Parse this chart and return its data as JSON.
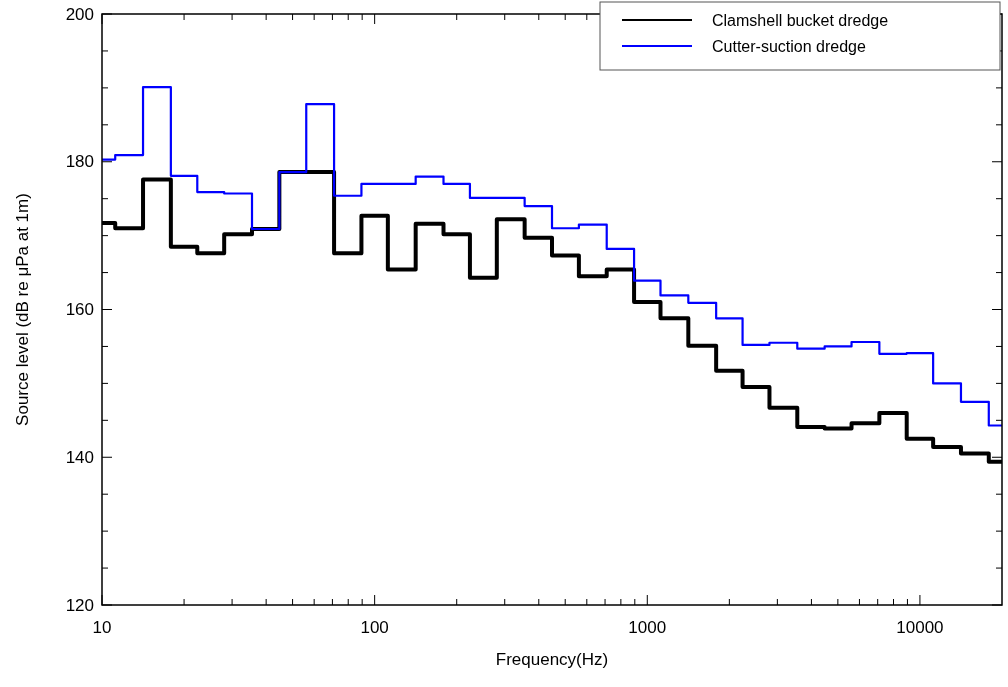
{
  "chart_data": {
    "type": "step",
    "xlabel": "Frequency(Hz)",
    "ylabel": "Source level (dB re μPa at 1m)",
    "x": [
      10,
      12.5,
      16,
      20,
      25,
      31.5,
      40,
      50,
      63,
      80,
      100,
      125,
      160,
      200,
      250,
      315,
      400,
      500,
      630,
      800,
      1000,
      1250,
      1600,
      2000,
      2500,
      3150,
      4000,
      5000,
      6300,
      8000,
      10000,
      12500,
      16000,
      20000
    ],
    "series": [
      {
        "name": "Clamshell bucket dredge",
        "color": "#000000",
        "values": [
          171.7,
          171.0,
          177.6,
          168.5,
          167.6,
          170.2,
          170.9,
          178.6,
          178.6,
          167.6,
          172.7,
          165.4,
          171.6,
          170.2,
          164.3,
          172.2,
          169.7,
          167.3,
          164.5,
          165.4,
          161.0,
          158.8,
          155.1,
          151.7,
          149.5,
          146.7,
          144.1,
          143.9,
          144.6,
          146.0,
          142.5,
          141.4,
          140.5,
          139.4
        ]
      },
      {
        "name": "Cutter-suction dredge",
        "color": "#0000ff",
        "values": [
          180.3,
          180.9,
          190.1,
          178.1,
          175.9,
          175.7,
          170.9,
          178.6,
          187.8,
          175.4,
          177.0,
          177.0,
          178.0,
          177.0,
          175.1,
          175.1,
          174.0,
          171.0,
          171.5,
          168.2,
          163.9,
          161.9,
          160.9,
          158.8,
          155.2,
          155.5,
          154.7,
          155.0,
          155.6,
          154.0,
          154.1,
          150.0,
          147.5,
          144.3
        ]
      }
    ],
    "log": "x",
    "xlim": [
      10,
      20000
    ],
    "xticks": [
      10,
      {
        "value": 20,
        "label": null
      },
      {
        "value": 30,
        "label": null
      },
      {
        "value": 40,
        "label": null
      },
      {
        "value": 50,
        "label": null
      },
      {
        "value": 60,
        "label": null
      },
      {
        "value": 70,
        "label": null
      },
      {
        "value": 80,
        "label": null
      },
      {
        "value": 90,
        "label": null
      },
      100,
      {
        "value": 200,
        "label": null
      },
      {
        "value": 300,
        "label": null
      },
      {
        "value": 400,
        "label": null
      },
      {
        "value": 500,
        "label": null
      },
      {
        "value": 600,
        "label": null
      },
      {
        "value": 700,
        "label": null
      },
      {
        "value": 800,
        "label": null
      },
      {
        "value": 900,
        "label": null
      },
      1000,
      {
        "value": 2000,
        "label": null
      },
      {
        "value": 3000,
        "label": null
      },
      {
        "value": 4000,
        "label": null
      },
      {
        "value": 5000,
        "label": null
      },
      {
        "value": 6000,
        "label": null
      },
      {
        "value": 7000,
        "label": null
      },
      {
        "value": 8000,
        "label": null
      },
      {
        "value": 9000,
        "label": null
      },
      10000
    ],
    "ylim": [
      120,
      200
    ],
    "yticks": [
      120,
      {
        "value": 125,
        "label": null
      },
      {
        "value": 130,
        "label": null
      },
      {
        "value": 135,
        "label": null
      },
      140,
      {
        "value": 145,
        "label": null
      },
      {
        "value": 150,
        "label": null
      },
      {
        "value": 155,
        "label": null
      },
      160,
      {
        "value": 165,
        "label": null
      },
      {
        "value": 170,
        "label": null
      },
      {
        "value": 175,
        "label": null
      },
      180,
      {
        "value": 185,
        "label": null
      },
      {
        "value": 190,
        "label": null
      },
      {
        "value": 195,
        "label": null
      },
      200
    ],
    "grid": false,
    "legend": "top right",
    "line_style": "solid",
    "marker": "none"
  }
}
